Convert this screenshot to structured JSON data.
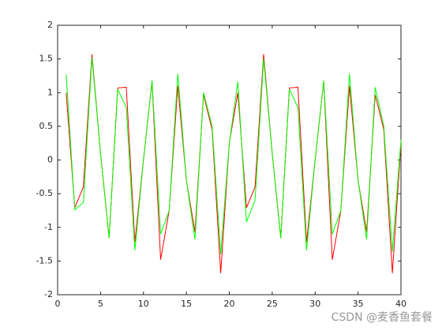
{
  "chart_data": {
    "type": "line",
    "x": [
      1,
      2,
      3,
      4,
      5,
      6,
      7,
      8,
      9,
      10,
      11,
      12,
      13,
      14,
      15,
      16,
      17,
      18,
      19,
      20,
      21,
      22,
      23,
      24,
      25,
      26,
      27,
      28,
      29,
      30,
      31,
      32,
      33,
      34,
      35,
      36,
      37,
      38,
      39,
      40
    ],
    "series": [
      {
        "color": "#ff0000",
        "values": [
          1.0,
          -0.71,
          -0.4,
          1.57,
          0.1,
          -1.16,
          1.07,
          1.08,
          -1.22,
          0.0,
          1.17,
          -1.48,
          -0.75,
          1.1,
          -0.3,
          -1.07,
          0.97,
          0.45,
          -1.68,
          0.25,
          1.0,
          -0.71,
          -0.4,
          1.57,
          0.1,
          -1.16,
          1.07,
          1.08,
          -1.22,
          0.0,
          1.17,
          -1.48,
          -0.75,
          1.1,
          -0.3,
          -1.07,
          0.97,
          0.45,
          -1.68,
          0.25
        ]
      },
      {
        "color": "#00ff00",
        "values": [
          1.27,
          -0.74,
          -0.63,
          1.52,
          0.1,
          -1.16,
          1.05,
          0.78,
          -1.34,
          0.0,
          1.18,
          -1.1,
          -0.75,
          1.28,
          -0.3,
          -1.18,
          1.0,
          0.5,
          -1.4,
          0.25,
          1.16,
          -0.92,
          -0.6,
          1.5,
          0.1,
          -1.16,
          1.05,
          0.78,
          -1.34,
          0.0,
          1.18,
          -1.1,
          -0.75,
          1.28,
          -0.3,
          -1.18,
          1.08,
          0.5,
          -1.36,
          0.3
        ]
      }
    ],
    "xlim": [
      0,
      40
    ],
    "xticks": [
      0,
      5,
      10,
      15,
      20,
      25,
      30,
      35,
      40
    ],
    "ylim": [
      -2,
      2
    ],
    "yticks": [
      -2,
      -1.5,
      -1,
      -0.5,
      0,
      0.5,
      1,
      1.5,
      2
    ]
  },
  "watermark": "CSDN @麦香鱼套餐"
}
